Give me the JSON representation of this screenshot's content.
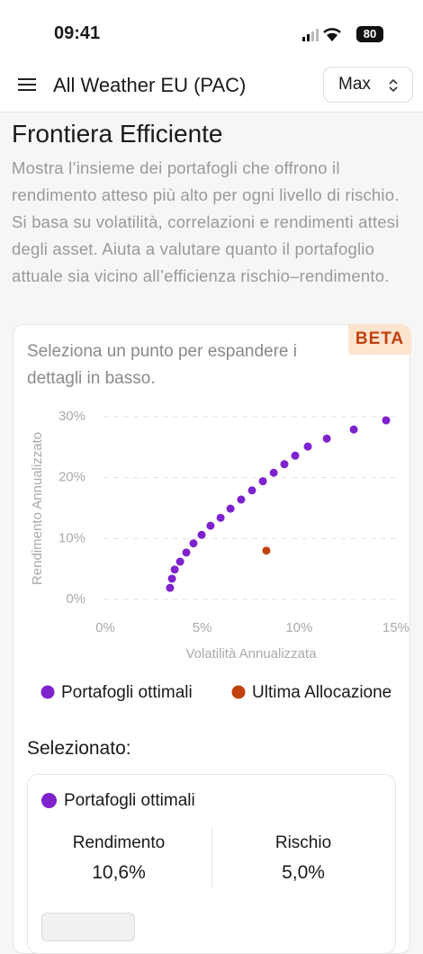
{
  "status_bar": {
    "time": "09:41",
    "battery": "80"
  },
  "header": {
    "title": "All Weather EU (PAC)",
    "range_select": "Max"
  },
  "section": {
    "title": "Frontiera Efficiente",
    "description": "Mostra l’insieme dei portafogli che offrono il rendimento atteso più alto per ogni livello di rischio. Si basa su volatilità, correlazioni e rendimenti attesi degli asset. Aiuta a valutare quanto il portafoglio attuale sia vicino all’efficienza rischio–rendimento."
  },
  "card": {
    "hint": "Seleziona un punto per espandere i dettagli in basso.",
    "badge": "BETA"
  },
  "chart_data": {
    "type": "scatter",
    "xlabel": "Volatilità Annualizzata",
    "ylabel": "Rendimento Annualizzato",
    "xlim": [
      0,
      15
    ],
    "ylim": [
      0,
      30
    ],
    "xticks": [
      {
        "value": 0,
        "label": "0%"
      },
      {
        "value": 5,
        "label": "5%"
      },
      {
        "value": 10,
        "label": "10%"
      },
      {
        "value": 15,
        "label": "15%"
      }
    ],
    "yticks": [
      {
        "value": 0,
        "label": "0%"
      },
      {
        "value": 10,
        "label": "10%"
      },
      {
        "value": 20,
        "label": "20%"
      },
      {
        "value": 30,
        "label": "30%"
      }
    ],
    "grid": true,
    "series": [
      {
        "name": "Portafogli ottimali",
        "color": "#7e22ce",
        "x": [
          3.34,
          3.44,
          3.58,
          3.86,
          4.18,
          4.55,
          4.97,
          5.43,
          5.95,
          6.46,
          7.01,
          7.57,
          8.13,
          8.69,
          9.24,
          9.8,
          10.45,
          11.43,
          12.82,
          14.49
        ],
        "values": [
          1.9,
          3.4,
          4.9,
          6.2,
          7.7,
          9.2,
          10.6,
          12.1,
          13.4,
          14.9,
          16.4,
          17.9,
          19.4,
          20.8,
          22.2,
          23.6,
          25.1,
          26.4,
          27.9,
          29.4
        ]
      },
      {
        "name": "Ultima Allocazione",
        "color": "#c2410c",
        "x": [
          8.31
        ],
        "values": [
          8.0
        ]
      }
    ]
  },
  "selected": {
    "heading": "Selezionato:",
    "series": "Portafogli ottimali",
    "metrics": [
      {
        "label": "Rendimento",
        "value": "10,6%"
      },
      {
        "label": "Rischio",
        "value": "5,0%"
      }
    ]
  }
}
